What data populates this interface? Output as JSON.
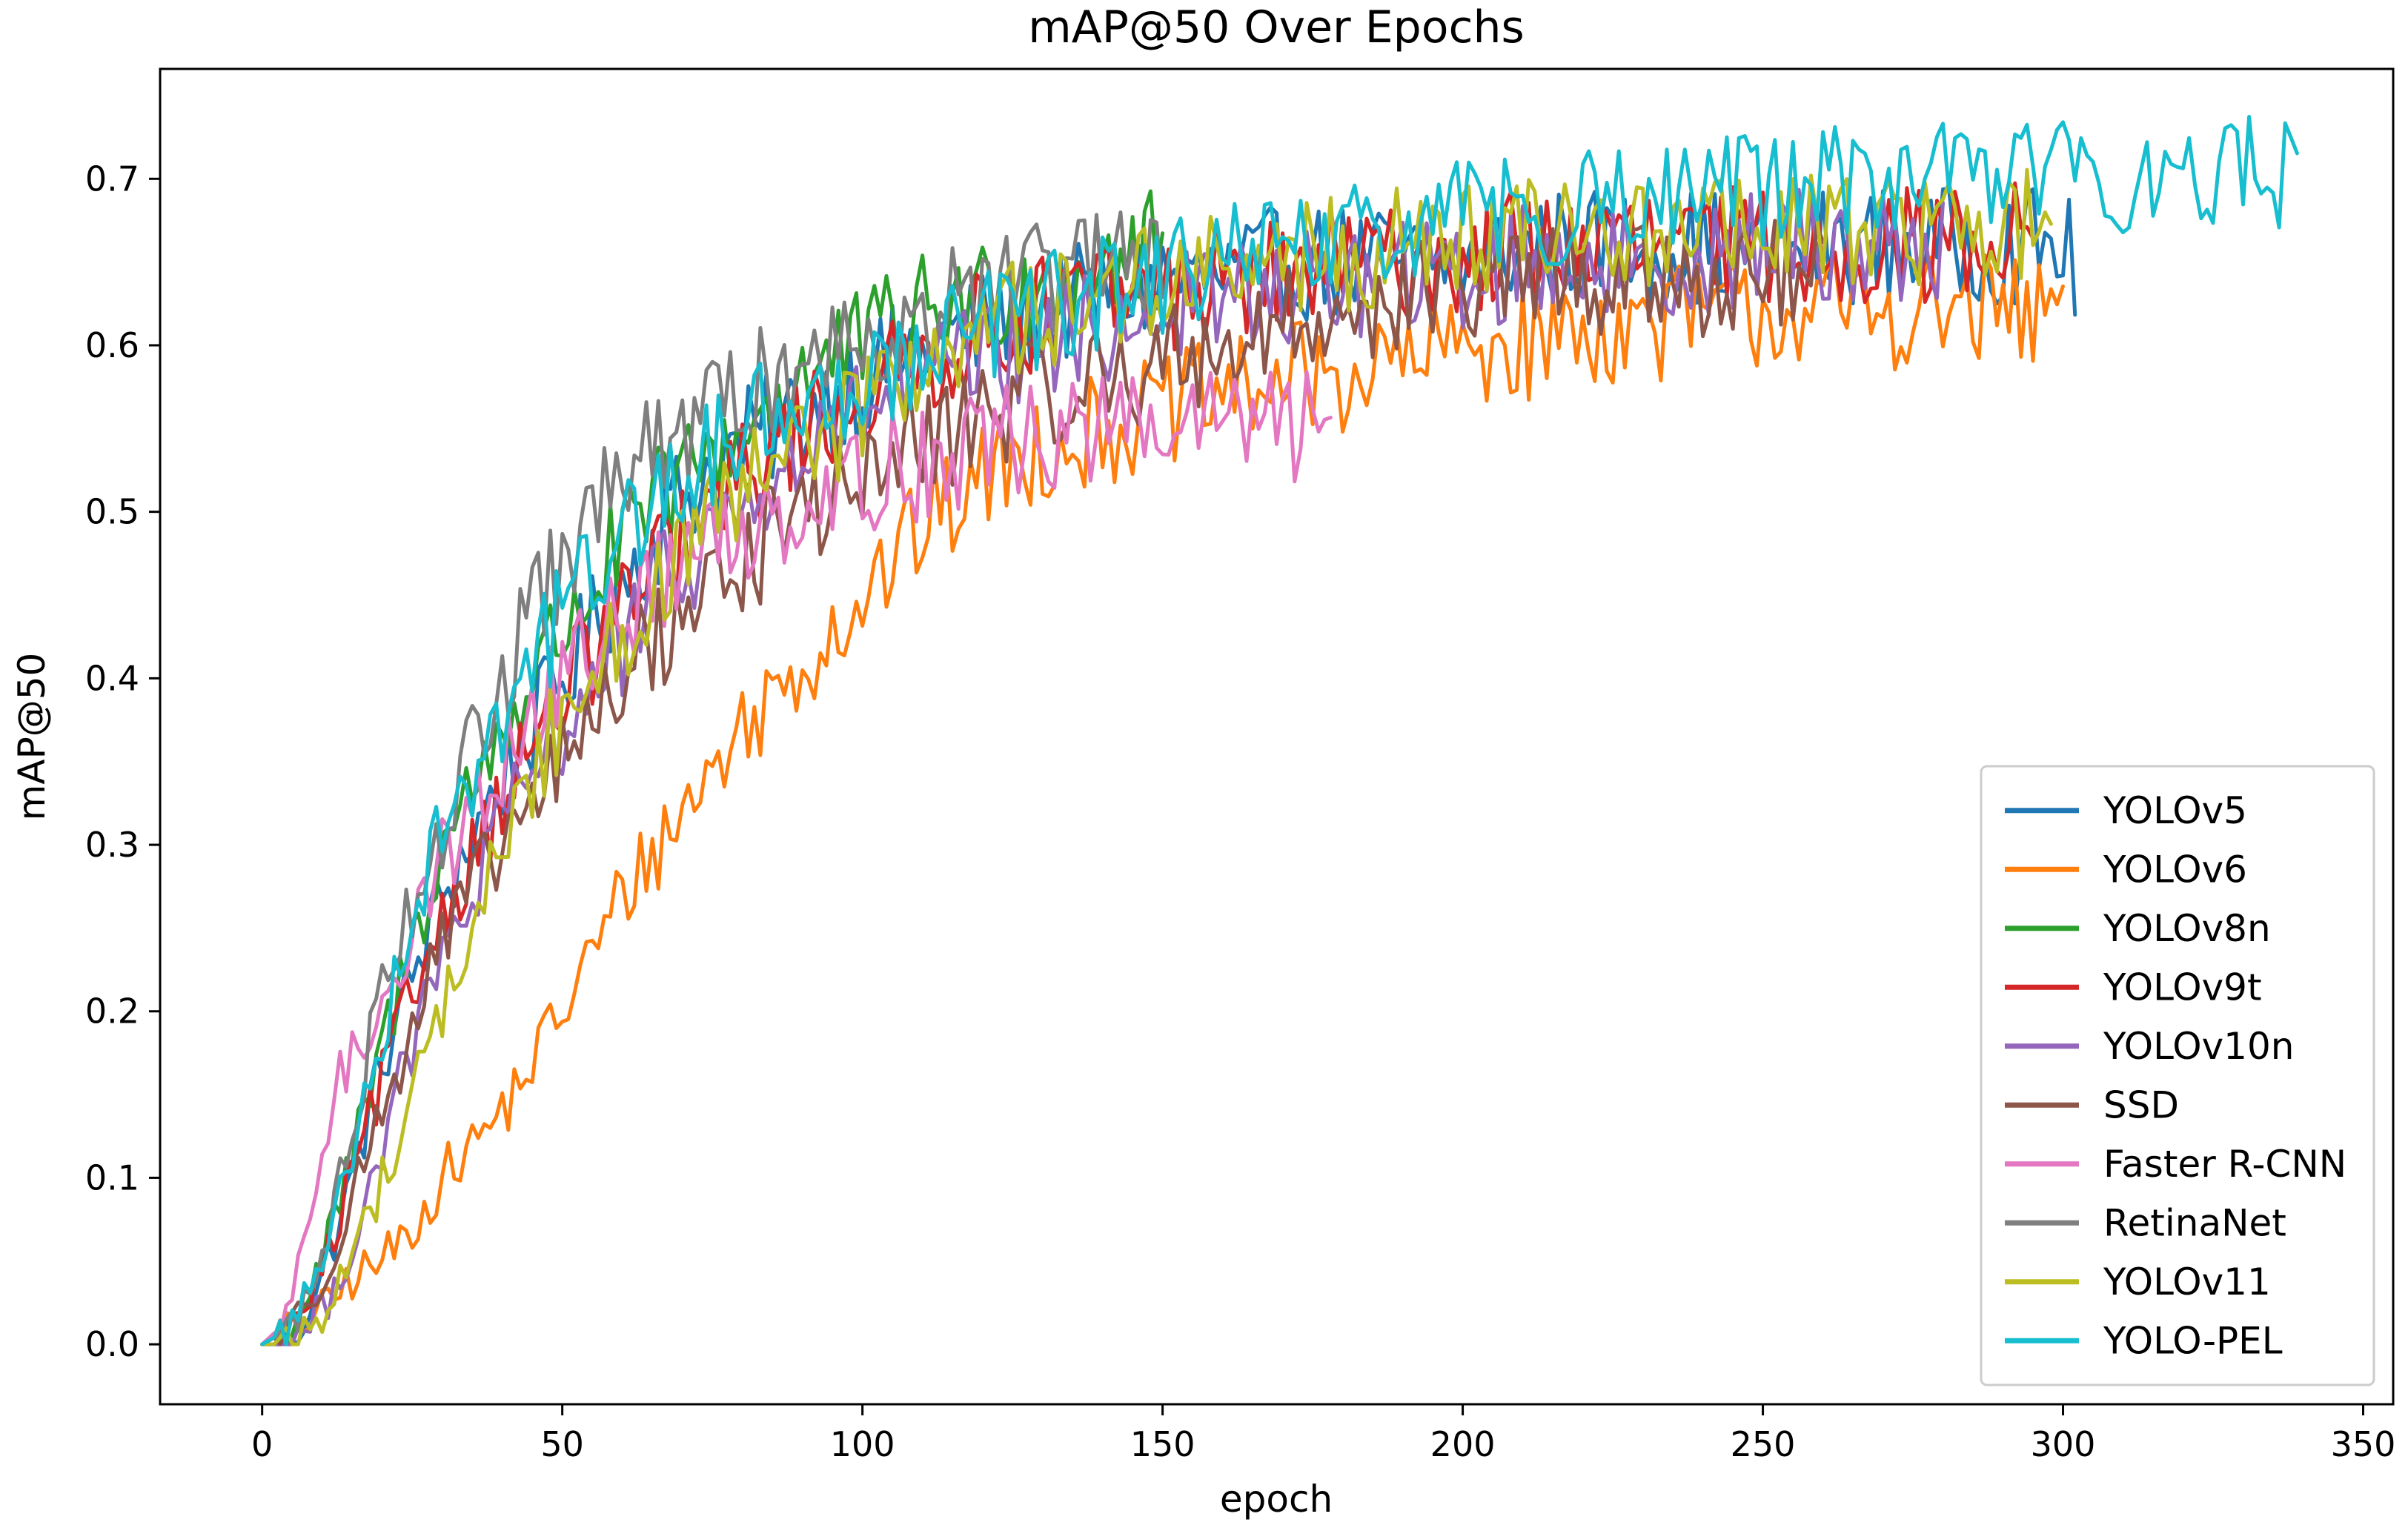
{
  "chart_data": {
    "type": "line",
    "title": "mAP@50 Over Epochs",
    "xlabel": "epoch",
    "ylabel": "mAP@50",
    "xlim": [
      -17,
      355
    ],
    "ylim": [
      -0.036,
      0.766
    ],
    "xticks": [
      0,
      50,
      100,
      150,
      200,
      250,
      300,
      350
    ],
    "yticks": [
      0.0,
      0.1,
      0.2,
      0.3,
      0.4,
      0.5,
      0.6,
      0.7
    ],
    "xtick_labels": [
      "0",
      "50",
      "100",
      "150",
      "200",
      "250",
      "300",
      "350"
    ],
    "ytick_labels": [
      "0.0",
      "0.1",
      "0.2",
      "0.3",
      "0.4",
      "0.5",
      "0.6",
      "0.7"
    ],
    "grid": false,
    "legend_position": "lower-right",
    "series": [
      {
        "name": "YOLOv5",
        "color": "#1f77b4",
        "x": [
          0,
          5,
          10,
          15,
          20,
          25,
          30,
          40,
          50,
          60,
          70,
          80,
          90,
          100,
          110,
          120,
          130,
          140,
          150,
          160,
          170,
          180,
          190,
          200,
          210,
          220,
          230,
          240,
          250,
          260,
          270,
          280,
          285,
          290,
          295,
          300,
          302
        ],
        "y": [
          0.0,
          0.0,
          0.04,
          0.1,
          0.17,
          0.22,
          0.27,
          0.34,
          0.4,
          0.46,
          0.51,
          0.54,
          0.56,
          0.58,
          0.6,
          0.61,
          0.62,
          0.63,
          0.64,
          0.64,
          0.65,
          0.65,
          0.65,
          0.65,
          0.66,
          0.66,
          0.66,
          0.66,
          0.66,
          0.66,
          0.66,
          0.66,
          0.66,
          0.66,
          0.66,
          0.66,
          0.647
        ]
      },
      {
        "name": "YOLOv6",
        "color": "#ff7f0e",
        "x": [
          0,
          5,
          10,
          15,
          20,
          25,
          30,
          40,
          50,
          60,
          70,
          80,
          90,
          100,
          110,
          120,
          130,
          140,
          150,
          160,
          170,
          180,
          190,
          200,
          210,
          220,
          230,
          240,
          250,
          260,
          270,
          280,
          290,
          295,
          300
        ],
        "y": [
          0.0,
          0.01,
          0.02,
          0.04,
          0.05,
          0.07,
          0.1,
          0.14,
          0.2,
          0.27,
          0.32,
          0.37,
          0.41,
          0.45,
          0.49,
          0.52,
          0.54,
          0.55,
          0.56,
          0.57,
          0.58,
          0.58,
          0.59,
          0.6,
          0.6,
          0.61,
          0.61,
          0.62,
          0.62,
          0.62,
          0.62,
          0.62,
          0.62,
          0.615,
          0.625
        ]
      },
      {
        "name": "YOLOv8n",
        "color": "#2ca02c",
        "x": [
          0,
          5,
          10,
          15,
          20,
          25,
          30,
          40,
          50,
          60,
          70,
          80,
          90,
          100,
          110,
          120,
          130,
          140,
          150
        ],
        "y": [
          0.0,
          0.01,
          0.05,
          0.11,
          0.18,
          0.24,
          0.3,
          0.37,
          0.43,
          0.48,
          0.52,
          0.55,
          0.58,
          0.6,
          0.62,
          0.63,
          0.64,
          0.65,
          0.66
        ]
      },
      {
        "name": "YOLOv9t",
        "color": "#d62728",
        "x": [
          0,
          5,
          10,
          15,
          20,
          25,
          30,
          40,
          50,
          60,
          70,
          80,
          90,
          100,
          110,
          120,
          130,
          140,
          150,
          160,
          170,
          180,
          190,
          200,
          210,
          220,
          230,
          240,
          250,
          260,
          270,
          280,
          290,
          295
        ],
        "y": [
          0.0,
          0.01,
          0.04,
          0.1,
          0.16,
          0.21,
          0.26,
          0.33,
          0.39,
          0.44,
          0.48,
          0.52,
          0.55,
          0.57,
          0.59,
          0.61,
          0.62,
          0.63,
          0.63,
          0.64,
          0.64,
          0.65,
          0.65,
          0.65,
          0.66,
          0.66,
          0.66,
          0.66,
          0.66,
          0.66,
          0.66,
          0.66,
          0.67,
          0.665
        ]
      },
      {
        "name": "YOLOv10n",
        "color": "#9467bd",
        "x": [
          0,
          5,
          10,
          15,
          20,
          25,
          30,
          40,
          50,
          60,
          70,
          80,
          90,
          100,
          110,
          120,
          130,
          140,
          150,
          160,
          170,
          180,
          190,
          200,
          210,
          220,
          230,
          240,
          250,
          260,
          270,
          280
        ],
        "y": [
          0.0,
          0.0,
          0.02,
          0.06,
          0.12,
          0.18,
          0.23,
          0.31,
          0.37,
          0.42,
          0.47,
          0.5,
          0.53,
          0.56,
          0.58,
          0.59,
          0.6,
          0.61,
          0.62,
          0.63,
          0.63,
          0.64,
          0.64,
          0.64,
          0.65,
          0.65,
          0.65,
          0.65,
          0.66,
          0.66,
          0.66,
          0.66
        ]
      },
      {
        "name": "SSD",
        "color": "#8c564b",
        "x": [
          0,
          5,
          10,
          15,
          20,
          25,
          30,
          40,
          50,
          60,
          70,
          80,
          90,
          100,
          110,
          120,
          130,
          140,
          150,
          160,
          170,
          180,
          190,
          200,
          210,
          220,
          230,
          240,
          250,
          260
        ],
        "y": [
          0.0,
          0.01,
          0.04,
          0.09,
          0.14,
          0.19,
          0.24,
          0.3,
          0.35,
          0.4,
          0.44,
          0.47,
          0.5,
          0.52,
          0.54,
          0.56,
          0.57,
          0.58,
          0.59,
          0.6,
          0.61,
          0.62,
          0.63,
          0.63,
          0.64,
          0.64,
          0.64,
          0.64,
          0.64,
          0.64
        ]
      },
      {
        "name": "Faster R-CNN",
        "color": "#e377c2",
        "x": [
          0,
          3,
          6,
          9,
          12,
          15,
          20,
          25,
          30,
          40,
          50,
          60,
          70,
          80,
          90,
          100,
          110,
          120,
          130,
          140,
          150,
          160,
          170,
          178
        ],
        "y": [
          0.0,
          0.01,
          0.04,
          0.1,
          0.15,
          0.17,
          0.21,
          0.25,
          0.29,
          0.35,
          0.4,
          0.44,
          0.47,
          0.49,
          0.51,
          0.52,
          0.53,
          0.54,
          0.545,
          0.55,
          0.55,
          0.555,
          0.55,
          0.55
        ]
      },
      {
        "name": "RetinaNet",
        "color": "#7f7f7f",
        "x": [
          0,
          5,
          10,
          15,
          20,
          25,
          30,
          40,
          50,
          60,
          70,
          80,
          90,
          100,
          110,
          120,
          130,
          140,
          150
        ],
        "y": [
          0.0,
          0.01,
          0.05,
          0.13,
          0.22,
          0.27,
          0.31,
          0.4,
          0.47,
          0.52,
          0.55,
          0.57,
          0.59,
          0.61,
          0.62,
          0.63,
          0.64,
          0.645,
          0.65
        ]
      },
      {
        "name": "YOLOv11",
        "color": "#bcbd22",
        "x": [
          0,
          5,
          10,
          15,
          20,
          25,
          30,
          40,
          50,
          60,
          70,
          80,
          90,
          100,
          110,
          120,
          130,
          140,
          150,
          160,
          170,
          180,
          190,
          200,
          210,
          220,
          230,
          240,
          250,
          260,
          270,
          280,
          290,
          298
        ],
        "y": [
          0.0,
          0.0,
          0.02,
          0.05,
          0.1,
          0.15,
          0.2,
          0.3,
          0.38,
          0.43,
          0.47,
          0.51,
          0.54,
          0.56,
          0.59,
          0.61,
          0.62,
          0.63,
          0.64,
          0.645,
          0.65,
          0.655,
          0.66,
          0.66,
          0.665,
          0.67,
          0.67,
          0.67,
          0.67,
          0.67,
          0.665,
          0.67,
          0.675,
          0.67
        ]
      },
      {
        "name": "YOLO-PEL",
        "color": "#17becf",
        "x": [
          0,
          5,
          10,
          15,
          20,
          25,
          30,
          40,
          50,
          60,
          70,
          80,
          90,
          100,
          110,
          120,
          130,
          140,
          150,
          160,
          170,
          180,
          190,
          200,
          210,
          220,
          230,
          240,
          250,
          260,
          270,
          280,
          290,
          300,
          310,
          320,
          330,
          339
        ],
        "y": [
          0.0,
          0.01,
          0.05,
          0.12,
          0.19,
          0.26,
          0.31,
          0.38,
          0.44,
          0.49,
          0.52,
          0.55,
          0.57,
          0.58,
          0.6,
          0.61,
          0.62,
          0.63,
          0.64,
          0.65,
          0.655,
          0.66,
          0.67,
          0.68,
          0.68,
          0.685,
          0.69,
          0.69,
          0.695,
          0.7,
          0.7,
          0.7,
          0.71,
          0.705,
          0.7,
          0.7,
          0.705,
          0.7
        ]
      }
    ]
  }
}
